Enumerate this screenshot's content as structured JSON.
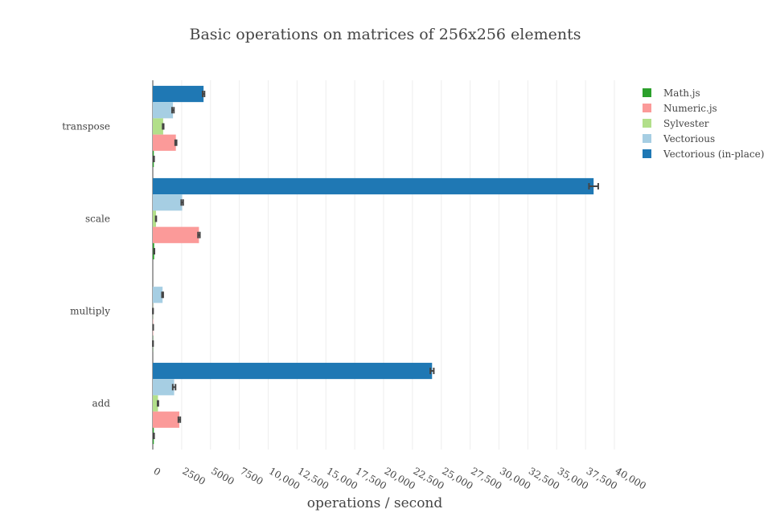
{
  "chart_data": {
    "type": "bar",
    "orientation": "horizontal",
    "title": "Basic operations on matrices of 256x256 elements",
    "xlabel": "operations / second",
    "ylabel": "",
    "xlim": [
      0,
      40000
    ],
    "x_ticks": [
      0,
      2500,
      5000,
      7500,
      10000,
      12500,
      15000,
      17500,
      20000,
      22500,
      25000,
      27500,
      30000,
      32500,
      35000,
      37500,
      40000
    ],
    "x_tick_labels": [
      "0",
      "2500",
      "5000",
      "7500",
      "10,000",
      "12,500",
      "15,000",
      "17,500",
      "20,000",
      "22,500",
      "25,000",
      "27,500",
      "30,000",
      "32,500",
      "35,000",
      "37,500",
      "40,000"
    ],
    "grid": "vertical",
    "legend_position": "top-right",
    "categories": [
      "transpose",
      "scale",
      "multiply",
      "add"
    ],
    "series": [
      {
        "name": "Math.js",
        "color": "#2ca02c",
        "values": [
          90,
          120,
          15,
          90
        ],
        "errors": [
          20,
          20,
          5,
          20
        ]
      },
      {
        "name": "Numeric.js",
        "color": "#fb9a99",
        "values": [
          2000,
          4000,
          30,
          2300
        ],
        "errors": [
          60,
          80,
          5,
          80
        ]
      },
      {
        "name": "Sylvester",
        "color": "#b2df8a",
        "values": [
          900,
          280,
          15,
          450
        ],
        "errors": [
          40,
          20,
          5,
          30
        ]
      },
      {
        "name": "Vectorious",
        "color": "#a6cee3",
        "values": [
          1750,
          2550,
          850,
          1850
        ],
        "errors": [
          80,
          80,
          50,
          120
        ]
      },
      {
        "name": "Vectorious (in-place)",
        "color": "#1f78b4",
        "values": [
          4400,
          38200,
          0,
          24200
        ],
        "errors": [
          80,
          400,
          0,
          150
        ]
      }
    ]
  }
}
